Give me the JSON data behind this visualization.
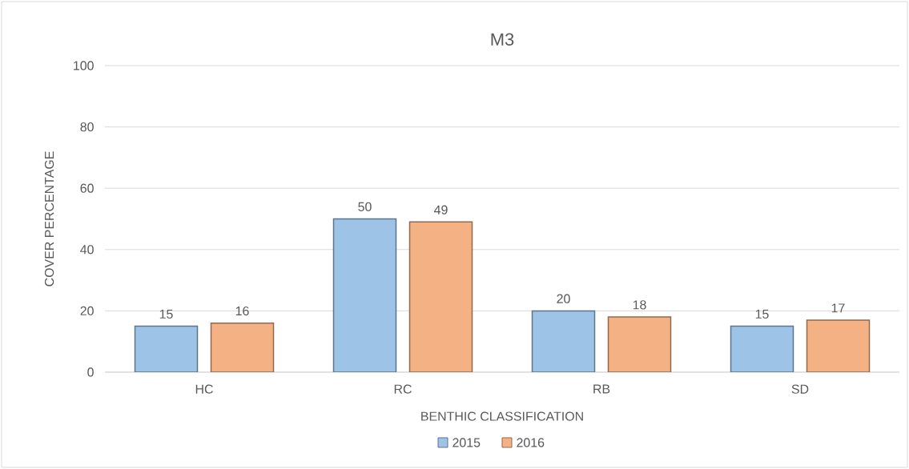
{
  "chart_data": {
    "type": "bar",
    "title": "M3",
    "xlabel": "BENTHIC CLASSIFICATION",
    "ylabel": "COVER PERCENTAGE",
    "categories": [
      "HC",
      "RC",
      "RB",
      "SD"
    ],
    "series": [
      {
        "name": "2015",
        "color": "#9dc3e6",
        "values": [
          15,
          50,
          20,
          15
        ]
      },
      {
        "name": "2016",
        "color": "#f4b183",
        "values": [
          16,
          49,
          18,
          17
        ]
      }
    ],
    "ylim": [
      0,
      100
    ],
    "yticks": [
      0,
      20,
      40,
      60,
      80,
      100
    ],
    "grid": "y",
    "legend": "bottom",
    "data_labels": true
  }
}
